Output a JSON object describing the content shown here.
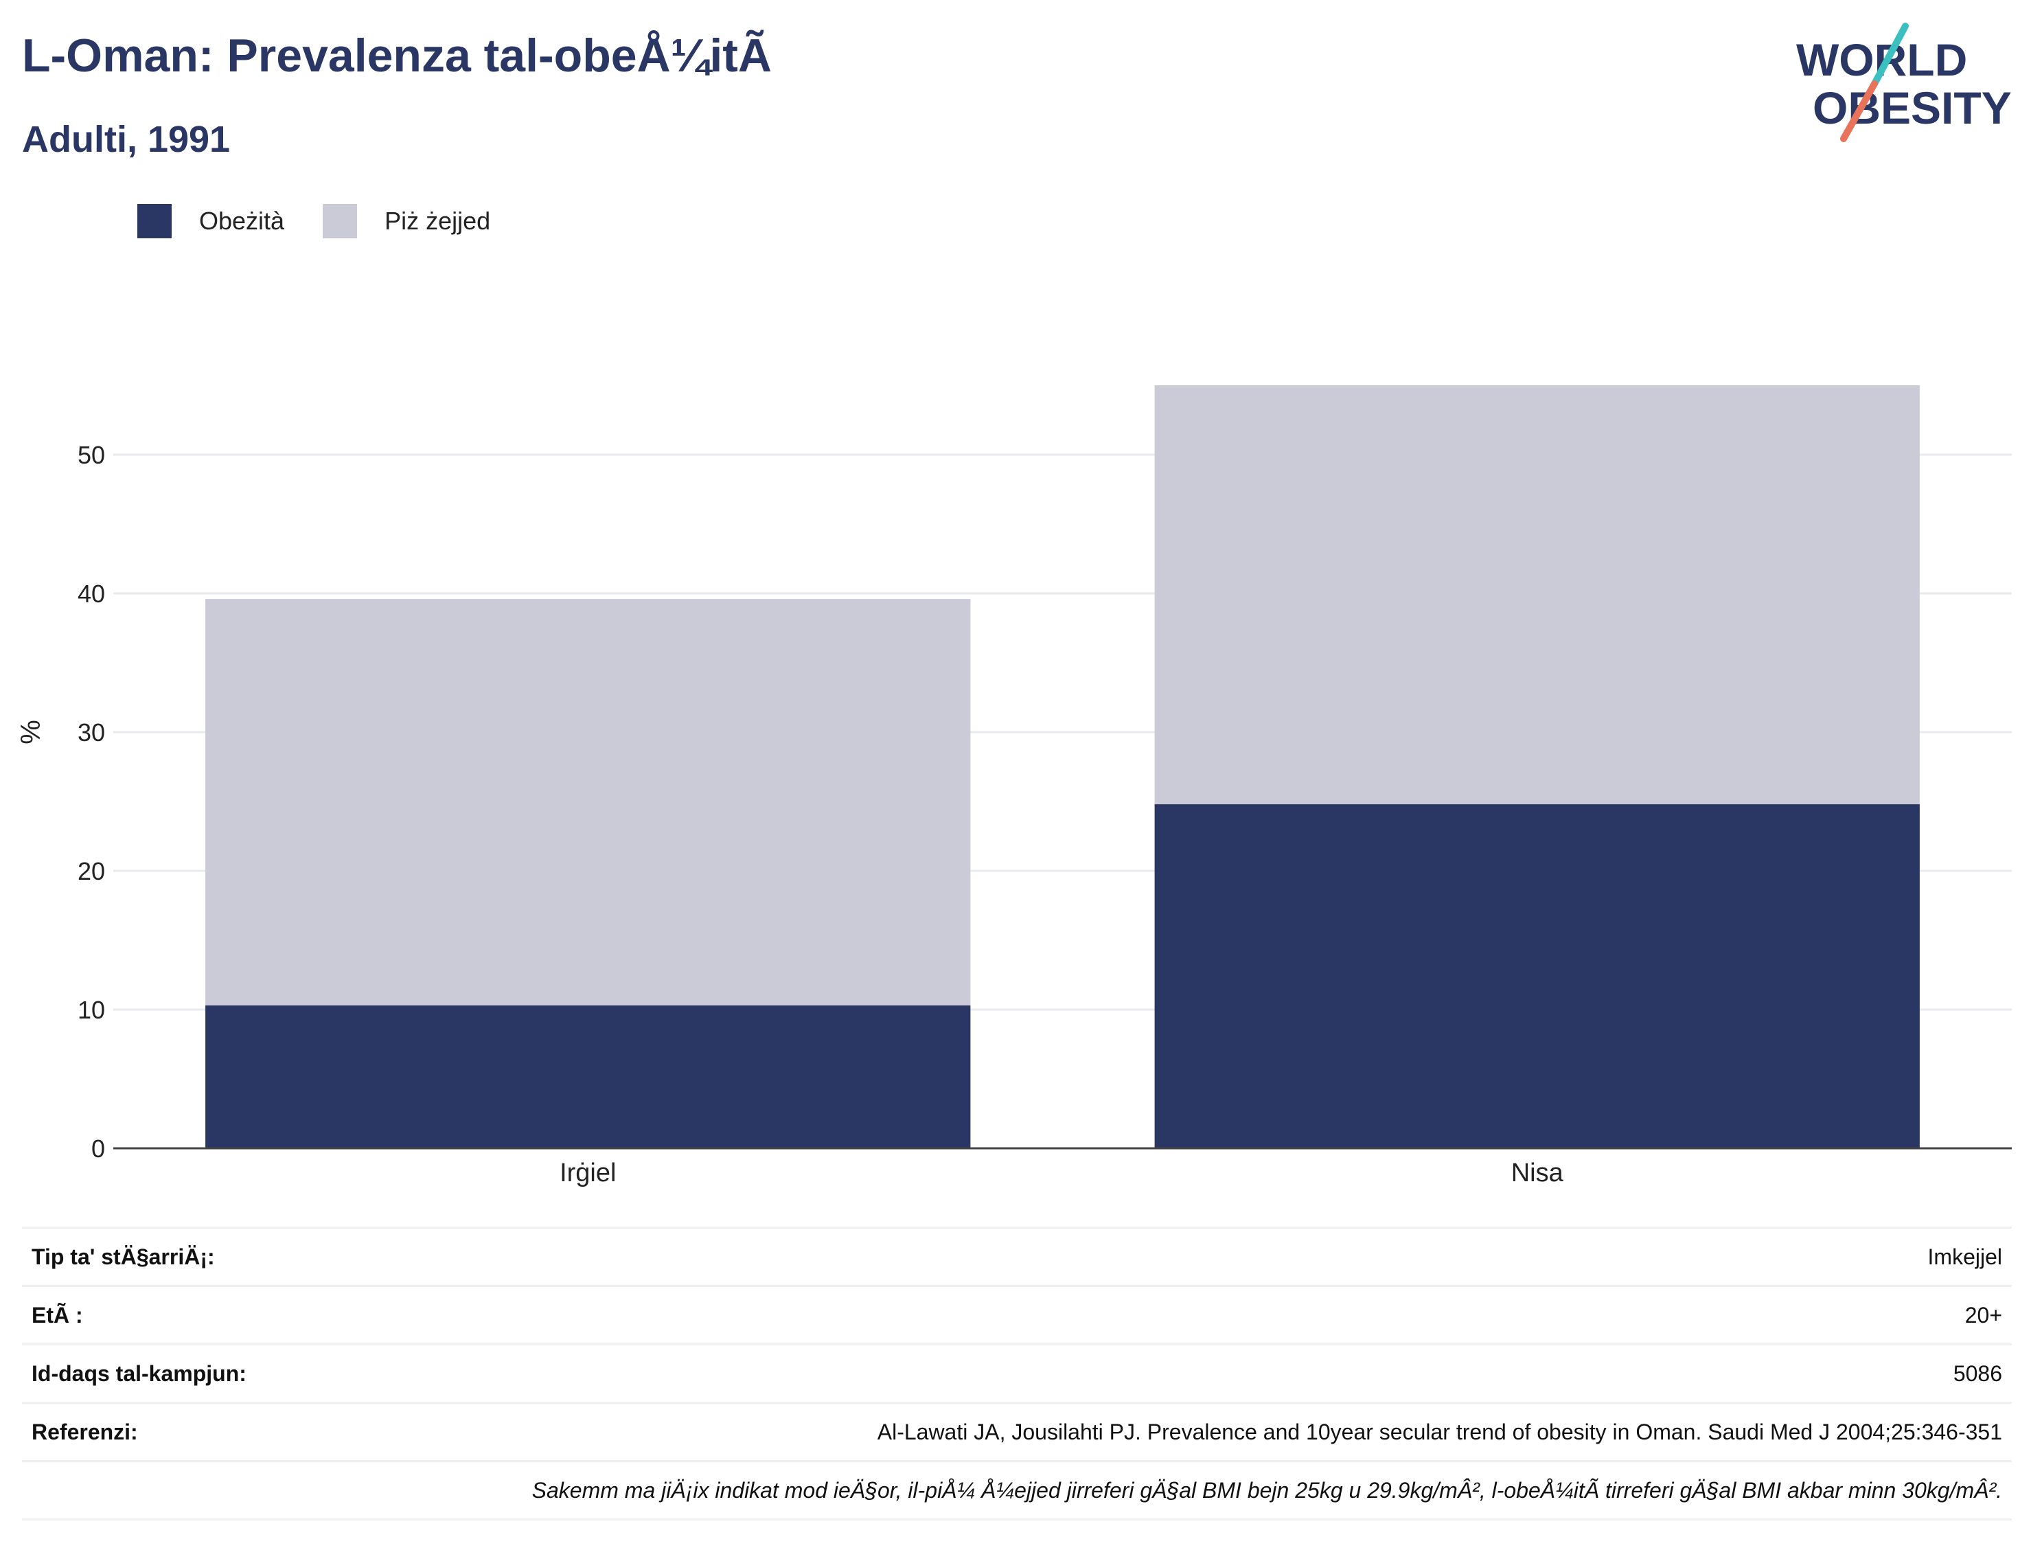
{
  "header": {
    "title": "L-Oman: Prevalenza tal-obeÅ¼itÃ",
    "subtitle": "Adulti, 1991"
  },
  "logo": {
    "line1": "WORLD",
    "line2": "OBESITY",
    "colors": {
      "text": "#2a3663",
      "slash_teal": "#3bbfbf",
      "slash_coral": "#e8735a"
    }
  },
  "legend": {
    "items": [
      {
        "label": "Obeżità",
        "color": "#2a3663"
      },
      {
        "label": "Piż żejjed",
        "color": "#cacbd7"
      }
    ]
  },
  "chart_data": {
    "type": "bar",
    "stacked": true,
    "categories": [
      "Irġiel",
      "Nisa"
    ],
    "series": [
      {
        "name": "Obeżità",
        "values": [
          10.3,
          24.8
        ],
        "color": "#2a3663"
      },
      {
        "name": "Piż żejjed",
        "values": [
          29.3,
          30.2
        ],
        "color": "#cacbd7"
      }
    ],
    "ylabel": "%",
    "ylim": [
      0,
      60
    ],
    "yticks": [
      0,
      10,
      20,
      30,
      40,
      50
    ],
    "grid": true,
    "legend_position": "top-left"
  },
  "info": {
    "rows": [
      {
        "label": "Tip ta' stÄ§arriÄ¡:",
        "value": "Imkejjel"
      },
      {
        "label": "EtÃ :",
        "value": "20+"
      },
      {
        "label": "Id-daqs tal-kampjun:",
        "value": "5086"
      },
      {
        "label": "Referenzi:",
        "value": "Al-Lawati JA, Jousilahti PJ. Prevalence and 10year secular trend of obesity in Oman. Saudi Med J 2004;25:346-351"
      }
    ],
    "note": "Sakemm ma jiÄ¡ix indikat mod ieÄ§or, il-piÅ¼ Å¼ejjed jirreferi gÄ§al BMI bejn 25kg u 29.9kg/mÂ², l-obeÅ¼itÃ  tirreferi gÄ§al BMI akbar minn 30kg/mÂ²."
  }
}
